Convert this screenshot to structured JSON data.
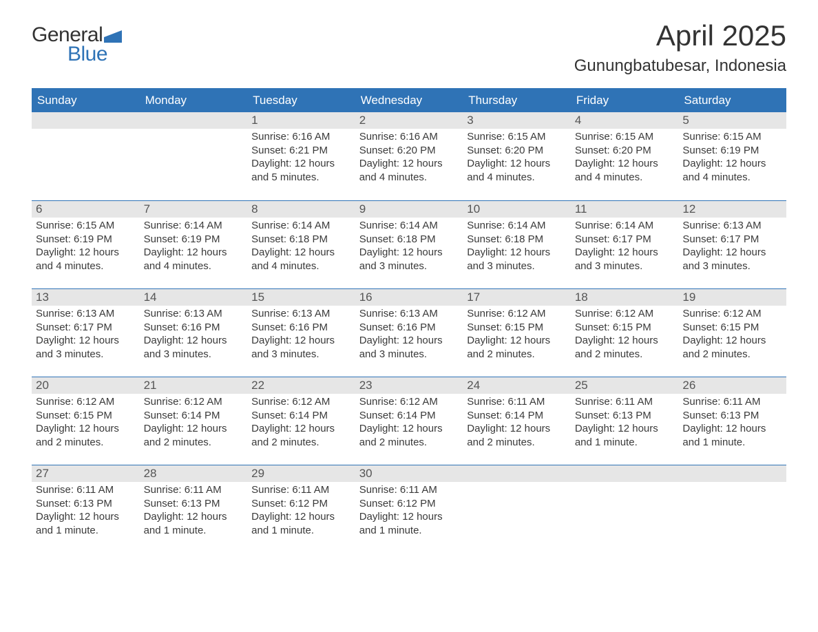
{
  "logo": {
    "text1": "General",
    "text2": "Blue",
    "flag_color": "#2f73b6"
  },
  "title": {
    "month": "April 2025",
    "location": "Gunungbatubesar, Indonesia"
  },
  "colors": {
    "header_bg": "#2f73b6",
    "header_text": "#ffffff",
    "daynum_bg": "#e6e6e6",
    "text": "#333333",
    "background": "#ffffff"
  },
  "fonts": {
    "title_size_pt": 32,
    "location_size_pt": 18,
    "body_size_pt": 11
  },
  "calendar": {
    "type": "table",
    "days_of_week": [
      "Sunday",
      "Monday",
      "Tuesday",
      "Wednesday",
      "Thursday",
      "Friday",
      "Saturday"
    ],
    "weeks": [
      [
        null,
        null,
        {
          "n": "1",
          "sr": "6:16 AM",
          "ss": "6:21 PM",
          "dl": "12 hours and 5 minutes."
        },
        {
          "n": "2",
          "sr": "6:16 AM",
          "ss": "6:20 PM",
          "dl": "12 hours and 4 minutes."
        },
        {
          "n": "3",
          "sr": "6:15 AM",
          "ss": "6:20 PM",
          "dl": "12 hours and 4 minutes."
        },
        {
          "n": "4",
          "sr": "6:15 AM",
          "ss": "6:20 PM",
          "dl": "12 hours and 4 minutes."
        },
        {
          "n": "5",
          "sr": "6:15 AM",
          "ss": "6:19 PM",
          "dl": "12 hours and 4 minutes."
        }
      ],
      [
        {
          "n": "6",
          "sr": "6:15 AM",
          "ss": "6:19 PM",
          "dl": "12 hours and 4 minutes."
        },
        {
          "n": "7",
          "sr": "6:14 AM",
          "ss": "6:19 PM",
          "dl": "12 hours and 4 minutes."
        },
        {
          "n": "8",
          "sr": "6:14 AM",
          "ss": "6:18 PM",
          "dl": "12 hours and 4 minutes."
        },
        {
          "n": "9",
          "sr": "6:14 AM",
          "ss": "6:18 PM",
          "dl": "12 hours and 3 minutes."
        },
        {
          "n": "10",
          "sr": "6:14 AM",
          "ss": "6:18 PM",
          "dl": "12 hours and 3 minutes."
        },
        {
          "n": "11",
          "sr": "6:14 AM",
          "ss": "6:17 PM",
          "dl": "12 hours and 3 minutes."
        },
        {
          "n": "12",
          "sr": "6:13 AM",
          "ss": "6:17 PM",
          "dl": "12 hours and 3 minutes."
        }
      ],
      [
        {
          "n": "13",
          "sr": "6:13 AM",
          "ss": "6:17 PM",
          "dl": "12 hours and 3 minutes."
        },
        {
          "n": "14",
          "sr": "6:13 AM",
          "ss": "6:16 PM",
          "dl": "12 hours and 3 minutes."
        },
        {
          "n": "15",
          "sr": "6:13 AM",
          "ss": "6:16 PM",
          "dl": "12 hours and 3 minutes."
        },
        {
          "n": "16",
          "sr": "6:13 AM",
          "ss": "6:16 PM",
          "dl": "12 hours and 3 minutes."
        },
        {
          "n": "17",
          "sr": "6:12 AM",
          "ss": "6:15 PM",
          "dl": "12 hours and 2 minutes."
        },
        {
          "n": "18",
          "sr": "6:12 AM",
          "ss": "6:15 PM",
          "dl": "12 hours and 2 minutes."
        },
        {
          "n": "19",
          "sr": "6:12 AM",
          "ss": "6:15 PM",
          "dl": "12 hours and 2 minutes."
        }
      ],
      [
        {
          "n": "20",
          "sr": "6:12 AM",
          "ss": "6:15 PM",
          "dl": "12 hours and 2 minutes."
        },
        {
          "n": "21",
          "sr": "6:12 AM",
          "ss": "6:14 PM",
          "dl": "12 hours and 2 minutes."
        },
        {
          "n": "22",
          "sr": "6:12 AM",
          "ss": "6:14 PM",
          "dl": "12 hours and 2 minutes."
        },
        {
          "n": "23",
          "sr": "6:12 AM",
          "ss": "6:14 PM",
          "dl": "12 hours and 2 minutes."
        },
        {
          "n": "24",
          "sr": "6:11 AM",
          "ss": "6:14 PM",
          "dl": "12 hours and 2 minutes."
        },
        {
          "n": "25",
          "sr": "6:11 AM",
          "ss": "6:13 PM",
          "dl": "12 hours and 1 minute."
        },
        {
          "n": "26",
          "sr": "6:11 AM",
          "ss": "6:13 PM",
          "dl": "12 hours and 1 minute."
        }
      ],
      [
        {
          "n": "27",
          "sr": "6:11 AM",
          "ss": "6:13 PM",
          "dl": "12 hours and 1 minute."
        },
        {
          "n": "28",
          "sr": "6:11 AM",
          "ss": "6:13 PM",
          "dl": "12 hours and 1 minute."
        },
        {
          "n": "29",
          "sr": "6:11 AM",
          "ss": "6:12 PM",
          "dl": "12 hours and 1 minute."
        },
        {
          "n": "30",
          "sr": "6:11 AM",
          "ss": "6:12 PM",
          "dl": "12 hours and 1 minute."
        },
        null,
        null,
        null
      ]
    ],
    "labels": {
      "sunrise": "Sunrise: ",
      "sunset": "Sunset: ",
      "daylight": "Daylight: "
    }
  }
}
